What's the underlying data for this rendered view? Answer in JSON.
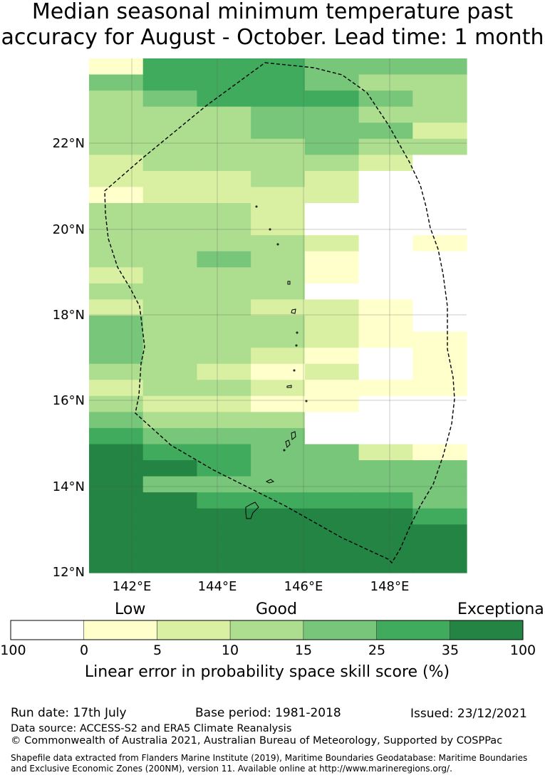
{
  "title": {
    "line1": "Median seasonal minimum temperature past",
    "line2": "accuracy for August - October. Lead time: 1 month"
  },
  "map": {
    "lat_labels": [
      "22°N",
      "20°N",
      "18°N",
      "16°N",
      "14°N",
      "12°N"
    ],
    "lon_labels": [
      "142°E",
      "144°E",
      "146°E",
      "148°E"
    ],
    "legend_bins": [
      {
        "range": "-100–0",
        "color": "#ffffff"
      },
      {
        "range": "0–5",
        "color": "#ffffcc"
      },
      {
        "range": "5–10",
        "color": "#d9f0a3"
      },
      {
        "range": "10–15",
        "color": "#addd8e"
      },
      {
        "range": "15–25",
        "color": "#78c679"
      },
      {
        "range": "25–35",
        "color": "#41ab5d"
      },
      {
        "range": "35–100",
        "color": "#238443"
      }
    ],
    "grid_codes": [
      "1555444",
      "4555433",
      "3455543",
      "3334433",
      "3334442",
      "3333433",
      "2333320",
      "2223200",
      "1222200",
      "3332000",
      "3332000",
      "3333201",
      "3343100",
      "2333100",
      "3333000",
      "2332210",
      "4333210",
      "4333211",
      "4332101",
      "3321201",
      "2332111",
      "3221100",
      "4333000",
      "5444000",
      "6554421",
      "6654444",
      "6444444",
      "6655554",
      "6666665",
      "6666666",
      "6666666",
      "6666666"
    ]
  },
  "colorbar": {
    "category_low": "Low",
    "category_good": "Good",
    "category_exceptional": "Exceptional",
    "ticks": [
      "-100",
      "0",
      "5",
      "10",
      "15",
      "25",
      "35",
      "100"
    ],
    "xlabel": "Linear error in probability space skill score (%)"
  },
  "footer": {
    "run_date": "Run date: 17th July",
    "base_period": "Base period: 1981-2018",
    "issued": "Issued: 23/12/2021",
    "data_source": "Data source: ACCESS-S2 and ERA5 Climate Reanalysis",
    "copyright": "© Commonwealth of Australia 2021, Australian Bureau of Meteorology, Supported by COSPPac",
    "shapefile_line1": "Shapefile data extracted from Flanders Marine Institute (2019), Maritime Boundaries Geodatabase: Maritime Boundaries",
    "shapefile_line2": "and Exclusive Economic Zones (200NM), version 11. Available online at http://www.marineregions.org/."
  }
}
